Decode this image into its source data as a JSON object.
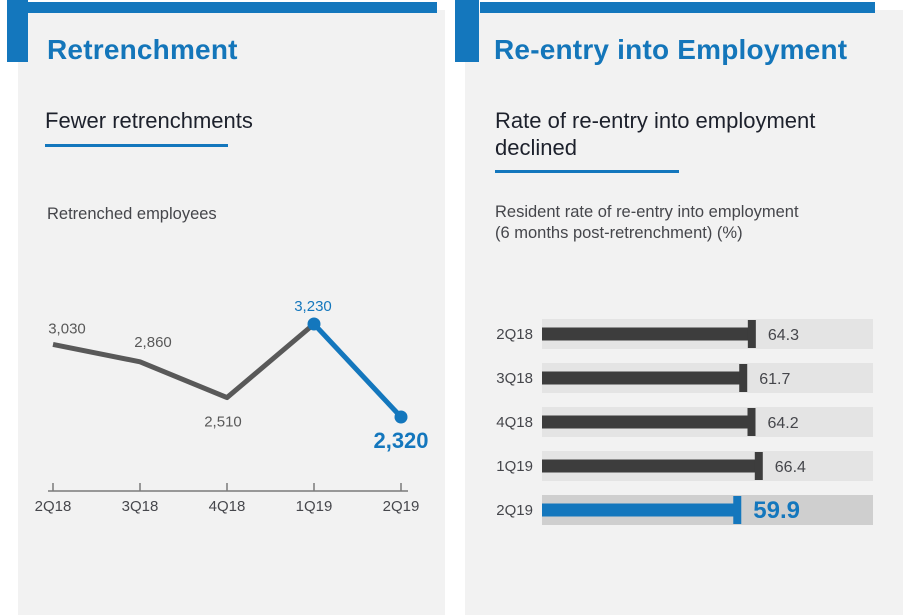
{
  "colors": {
    "accent": "#1477bd",
    "accent_text": "#1476ba",
    "bar_dark": "#3d3d3d",
    "line_gray": "#595959",
    "panel_bg": "#f2f2f2",
    "track": "#e4e4e4",
    "track_highlight": "#cfcfcf",
    "text_dark": "#1d212c",
    "text_gray": "#45464b"
  },
  "left_panel": {
    "title": "Retrenchment",
    "subtitle": "Fewer retrenchments",
    "chart_title": "Retrenched employees"
  },
  "right_panel": {
    "title": "Re-entry into Employment",
    "subtitle_lines": [
      "Rate of re-entry into employment",
      "declined"
    ],
    "chart_title_lines": [
      "Resident rate of re-entry into employment",
      "(6 months post-retrenchment) (%)"
    ]
  },
  "chart_data": [
    {
      "type": "line",
      "title": "Retrenched employees",
      "categories": [
        "2Q18",
        "3Q18",
        "4Q18",
        "1Q19",
        "2Q19"
      ],
      "values": [
        3030,
        2860,
        2510,
        3230,
        2320
      ],
      "value_labels": [
        "3,030",
        "2,860",
        "2,510",
        "3,230",
        "2,320"
      ],
      "highlight_from_category": "1Q19",
      "series_color": "#595959",
      "highlight_color": "#1477bd",
      "axis_color": "#7a7a7a",
      "tick_label_color": "#46474c",
      "grid": "off",
      "ylim": [
        2320,
        3230
      ]
    },
    {
      "type": "bar",
      "orientation": "horizontal",
      "title": "Resident rate of re-entry into employment (6 months post-retrenchment) (%)",
      "categories": [
        "2Q18",
        "3Q18",
        "4Q18",
        "1Q19",
        "2Q19"
      ],
      "values": [
        64.3,
        61.7,
        64.2,
        66.4,
        59.9
      ],
      "value_labels": [
        "64.3",
        "61.7",
        "64.2",
        "66.4",
        "59.9"
      ],
      "xlim": [
        0,
        100
      ],
      "highlight_category": "2Q19",
      "bar_color": "#3d3d3d",
      "highlight_color": "#1477bd",
      "track_color": "#e4e4e4",
      "highlight_track_color": "#cfcfcf",
      "label_color": "#45464b",
      "grid": "off"
    }
  ]
}
